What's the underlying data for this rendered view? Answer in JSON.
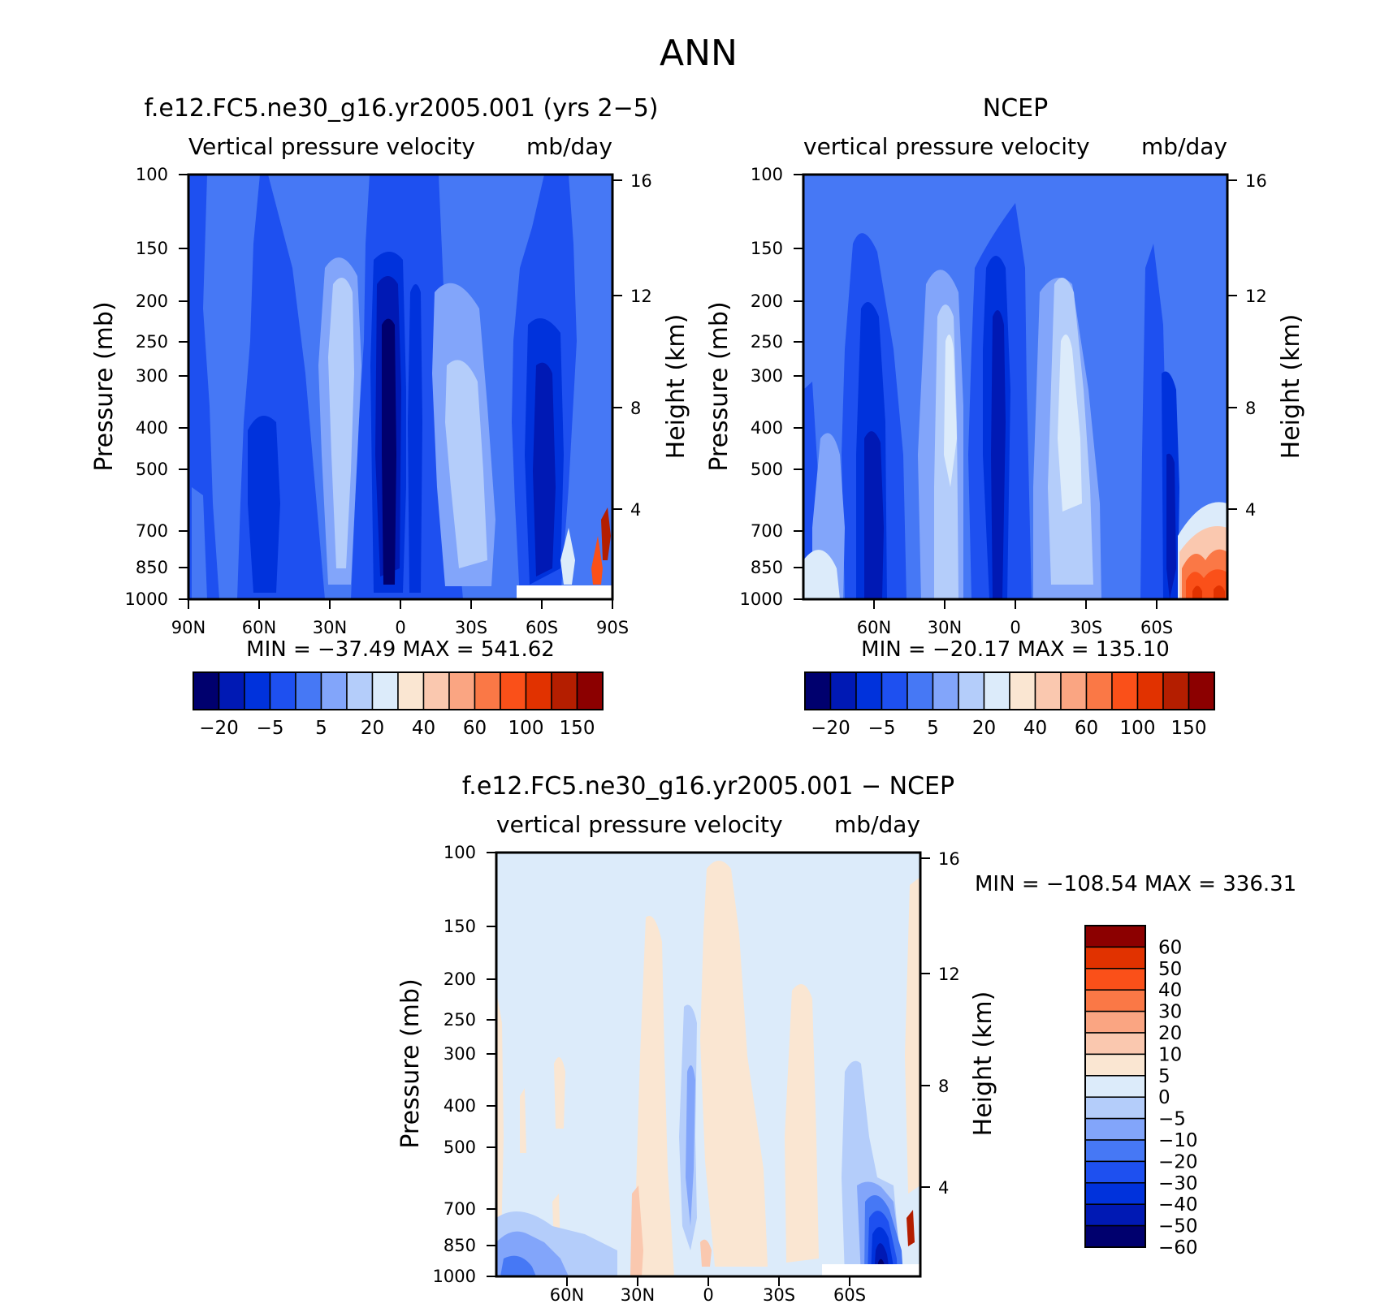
{
  "figure_title": "ANN",
  "colors": {
    "full_palette": [
      "#00006e",
      "#0019b4",
      "#0032dc",
      "#1e50f0",
      "#4678f5",
      "#82a5fa",
      "#b4cdfa",
      "#dcebfa",
      "#fae6d2",
      "#fac8af",
      "#faa582",
      "#fa7846",
      "#fa5019",
      "#e13200",
      "#b41e00",
      "#8c0000"
    ],
    "diff_palette": [
      "#00006e",
      "#0019b4",
      "#0032dc",
      "#1e50f0",
      "#4678f5",
      "#82a5fa",
      "#b4cdfa",
      "#dcebfa",
      "#fae6d2",
      "#fac8af",
      "#faa582",
      "#fa7846",
      "#fa5019",
      "#e13200",
      "#8c0000"
    ]
  },
  "chart_data": [
    {
      "id": "panel-model",
      "type": "heatmap",
      "title": "f.e12.FC5.ne30_g16.yr2005.001 (yrs 2−5)",
      "left_subtitle": "Vertical pressure velocity",
      "right_subtitle": "mb/day",
      "ylabel": "Pressure (mb)",
      "y2label": "Height (km)",
      "x_ticks": [
        "90N",
        "60N",
        "30N",
        "0",
        "30S",
        "60S",
        "90S"
      ],
      "y_ticks": [
        "100",
        "150",
        "200",
        "250",
        "300",
        "400",
        "500",
        "700",
        "850",
        "1000"
      ],
      "y2_ticks": [
        "16",
        "12",
        "8",
        "4"
      ],
      "min_max": "MIN = −37.49   MAX = 541.62",
      "colorbar_labels": [
        "−20",
        "−5",
        "5",
        "20",
        "40",
        "60",
        "100",
        "150"
      ]
    },
    {
      "id": "panel-ncep",
      "type": "heatmap",
      "title": "NCEP",
      "left_subtitle": "vertical pressure velocity",
      "right_subtitle": "mb/day",
      "ylabel": "Pressure (mb)",
      "y2label": "Height (km)",
      "x_ticks": [
        "60N",
        "30N",
        "0",
        "30S",
        "60S"
      ],
      "y_ticks": [
        "100",
        "150",
        "200",
        "250",
        "300",
        "400",
        "500",
        "700",
        "850",
        "1000"
      ],
      "y2_ticks": [
        "16",
        "12",
        "8",
        "4"
      ],
      "min_max": "MIN = −20.17   MAX = 135.10",
      "colorbar_labels": [
        "−20",
        "−5",
        "5",
        "20",
        "40",
        "60",
        "100",
        "150"
      ]
    },
    {
      "id": "panel-diff",
      "type": "heatmap",
      "title": "f.e12.FC5.ne30_g16.yr2005.001 − NCEP",
      "left_subtitle": "vertical pressure velocity",
      "right_subtitle": "mb/day",
      "ylabel": "Pressure (mb)",
      "y2label": "Height (km)",
      "x_ticks": [
        "60N",
        "30N",
        "0",
        "30S",
        "60S"
      ],
      "y_ticks": [
        "100",
        "150",
        "200",
        "250",
        "300",
        "400",
        "500",
        "700",
        "850",
        "1000"
      ],
      "y2_ticks": [
        "16",
        "12",
        "8",
        "4"
      ],
      "min_max": "MIN = −108.54   MAX = 336.31",
      "colorbar_labels": [
        "60",
        "50",
        "40",
        "30",
        "20",
        "10",
        "5",
        "0",
        "−5",
        "−10",
        "−20",
        "−30",
        "−40",
        "−50",
        "−60"
      ]
    }
  ]
}
